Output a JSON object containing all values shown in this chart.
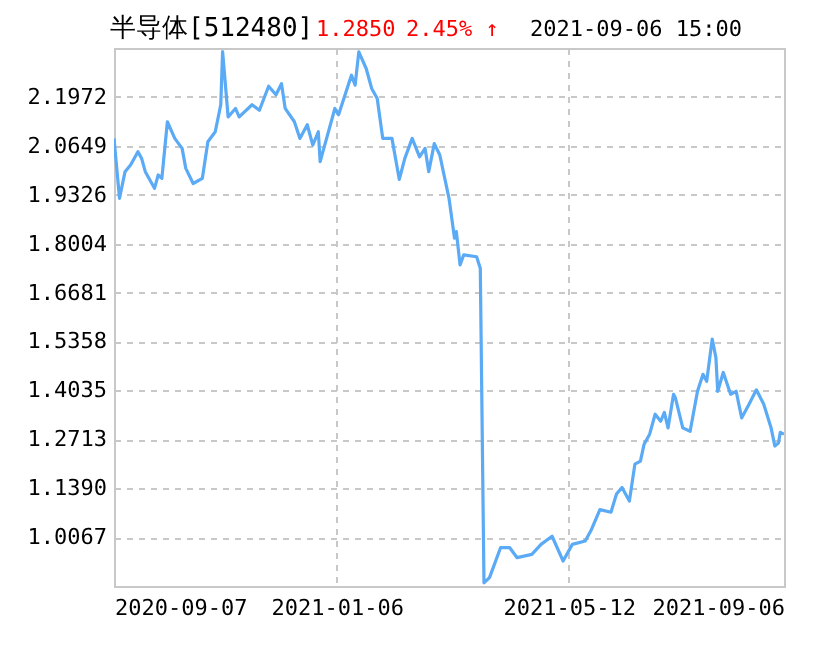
{
  "chart_data": {
    "type": "line",
    "title": "半导体[512480]",
    "annotations": [
      "1.2850",
      "2.45% ↑",
      "2021-09-06 15:00"
    ],
    "x": [
      "2020-09-07",
      "2020-09-10",
      "2020-09-13",
      "2020-09-16",
      "2020-09-20",
      "2020-09-22",
      "2020-09-24",
      "2020-09-29",
      "2020-10-01",
      "2020-10-03",
      "2020-10-06",
      "2020-10-10",
      "2020-10-14",
      "2020-10-16",
      "2020-10-20",
      "2020-10-25",
      "2020-10-28",
      "2020-11-01",
      "2020-11-04",
      "2020-11-05",
      "2020-11-08",
      "2020-11-12",
      "2020-11-14",
      "2020-11-21",
      "2020-11-25",
      "2020-11-30",
      "2020-12-04",
      "2020-12-07",
      "2020-12-09",
      "2020-12-14",
      "2020-12-17",
      "2020-12-21",
      "2020-12-24",
      "2020-12-27",
      "2020-12-28",
      "2021-01-05",
      "2021-01-07",
      "2021-01-14",
      "2021-01-16",
      "2021-01-18",
      "2021-01-22",
      "2021-01-25",
      "2021-01-28",
      "2021-01-31",
      "2021-02-05",
      "2021-02-09",
      "2021-02-12",
      "2021-02-16",
      "2021-02-20",
      "2021-02-23",
      "2021-02-25",
      "2021-02-28",
      "2021-03-03",
      "2021-03-08",
      "2021-03-11",
      "2021-03-12",
      "2021-03-14",
      "2021-03-16",
      "2021-03-23",
      "2021-03-25",
      "2021-03-27",
      "2021-03-30",
      "2021-04-05",
      "2021-04-10",
      "2021-04-14",
      "2021-04-22",
      "2021-04-27",
      "2021-05-03",
      "2021-05-09",
      "2021-05-14",
      "2021-05-21",
      "2021-05-24",
      "2021-05-29",
      "2021-06-04",
      "2021-06-07",
      "2021-06-10",
      "2021-06-14",
      "2021-06-17",
      "2021-06-20",
      "2021-06-22",
      "2021-06-25",
      "2021-06-28",
      "2021-07-01",
      "2021-07-03",
      "2021-07-05",
      "2021-07-08",
      "2021-07-09",
      "2021-07-13",
      "2021-07-17",
      "2021-07-21",
      "2021-07-24",
      "2021-07-26",
      "2021-07-29",
      "2021-07-31",
      "2021-08-01",
      "2021-08-04",
      "2021-08-08",
      "2021-08-11",
      "2021-08-14",
      "2021-08-18",
      "2021-08-22",
      "2021-08-26",
      "2021-08-30",
      "2021-09-01",
      "2021-09-03",
      "2021-09-04",
      "2021-09-06"
    ],
    "series": [
      {
        "color": "#5aaaf5",
        "values": [
          2.085,
          1.923,
          1.995,
          2.013,
          2.049,
          2.031,
          1.995,
          1.95,
          1.986,
          1.977,
          2.13,
          2.085,
          2.058,
          2.004,
          1.963,
          1.977,
          2.076,
          2.103,
          2.176,
          2.32,
          2.143,
          2.166,
          2.143,
          2.176,
          2.161,
          2.226,
          2.203,
          2.233,
          2.166,
          2.13,
          2.085,
          2.122,
          2.067,
          2.103,
          2.022,
          2.166,
          2.149,
          2.256,
          2.229,
          2.319,
          2.274,
          2.22,
          2.193,
          2.085,
          2.085,
          1.974,
          2.031,
          2.085,
          2.035,
          2.058,
          1.995,
          2.071,
          2.04,
          1.923,
          1.815,
          1.833,
          1.743,
          1.77,
          1.765,
          1.734,
          0.883,
          0.897,
          0.978,
          0.978,
          0.951,
          0.96,
          0.987,
          1.009,
          0.942,
          0.987,
          0.996,
          1.023,
          1.081,
          1.074,
          1.123,
          1.141,
          1.104,
          1.204,
          1.212,
          1.258,
          1.285,
          1.339,
          1.32,
          1.344,
          1.302,
          1.393,
          1.383,
          1.302,
          1.293,
          1.401,
          1.447,
          1.428,
          1.542,
          1.492,
          1.401,
          1.452,
          1.393,
          1.401,
          1.329,
          1.366,
          1.405,
          1.366,
          1.302,
          1.253,
          1.261,
          1.29,
          1.285
        ]
      }
    ],
    "xlim": [
      "2020-09-07",
      "2021-09-06"
    ],
    "xticks": [
      "2020-09-07",
      "2021-01-06",
      "2021-05-12",
      "2021-09-06"
    ],
    "ylim": [
      0.8744,
      2.3295
    ],
    "yticks": [
      1.0067,
      {
        "value": 1.139,
        "label": "1.1390"
      },
      1.2713,
      1.4035,
      1.5358,
      1.6681,
      1.8004,
      1.9326,
      2.0649,
      2.1972
    ],
    "grid": true
  }
}
